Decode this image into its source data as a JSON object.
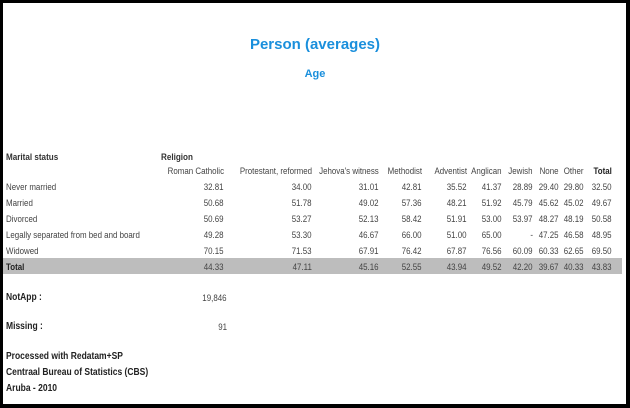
{
  "title": "Person (averages)",
  "subtitle": "Age",
  "row_header": "Marital status",
  "col_group": "Religion",
  "columns": [
    "Roman Catholic",
    "Protestant, reformed",
    "Jehova's witness",
    "Methodist",
    "Adventist",
    "Anglican",
    "Jewish",
    "None",
    "Other",
    "Total"
  ],
  "rows": [
    {
      "label": "Never married",
      "values": [
        "32.81",
        "34.00",
        "31.01",
        "42.81",
        "35.52",
        "41.37",
        "28.89",
        "29.40",
        "29.80",
        "32.50"
      ]
    },
    {
      "label": "Married",
      "values": [
        "50.68",
        "51.78",
        "49.02",
        "57.36",
        "48.21",
        "51.92",
        "45.79",
        "45.62",
        "45.02",
        "49.67"
      ]
    },
    {
      "label": "Divorced",
      "values": [
        "50.69",
        "53.27",
        "52.13",
        "58.42",
        "51.91",
        "53.00",
        "53.97",
        "48.27",
        "48.19",
        "50.58"
      ]
    },
    {
      "label": "Legally separated from bed and board",
      "values": [
        "49.28",
        "53.30",
        "46.67",
        "66.00",
        "51.00",
        "65.00",
        "-",
        "47.25",
        "46.58",
        "48.95"
      ]
    },
    {
      "label": "Widowed",
      "values": [
        "70.15",
        "71.53",
        "67.91",
        "76.42",
        "67.87",
        "76.56",
        "60.09",
        "60.33",
        "62.65",
        "69.50"
      ]
    },
    {
      "label": "Total",
      "values": [
        "44.33",
        "47.11",
        "45.16",
        "52.55",
        "43.94",
        "49.52",
        "42.20",
        "39.67",
        "40.33",
        "43.83"
      ]
    }
  ],
  "notapp": {
    "label": "NotApp :",
    "value": "19,846"
  },
  "missing": {
    "label": "Missing :",
    "value": "91"
  },
  "footer": [
    "Processed with Redatam+SP",
    "Centraal Bureau of Statistics (CBS)",
    "Aruba - 2010"
  ],
  "colors": {
    "title": "#1a8fdc",
    "total_band": "#bdbdbd"
  }
}
